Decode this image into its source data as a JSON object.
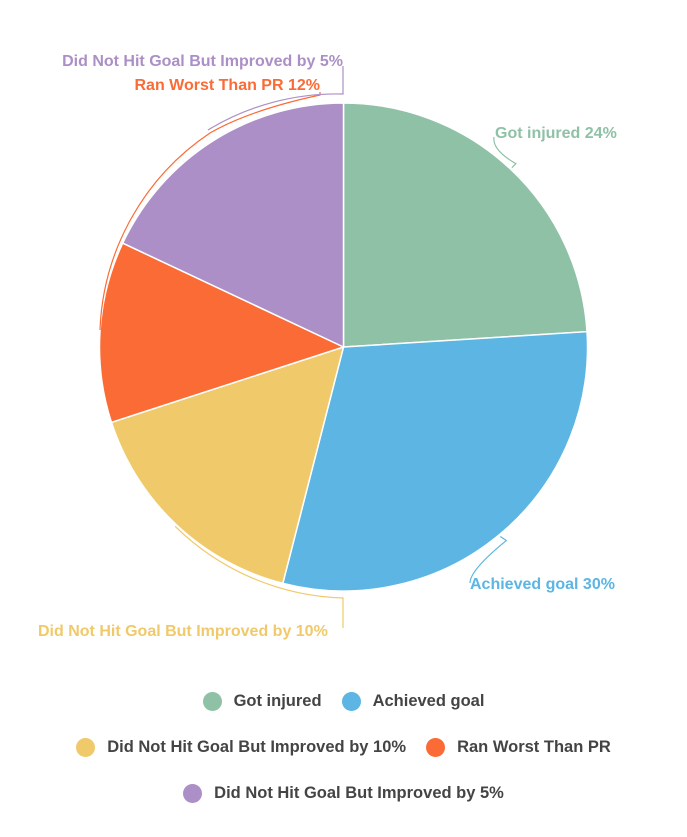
{
  "chart_data": {
    "type": "pie",
    "title": "",
    "slices": [
      {
        "name": "Got injured",
        "value": 24,
        "label": "Got injured 24%",
        "color": "#8fc1a6"
      },
      {
        "name": "Achieved goal",
        "value": 30,
        "label": "Achieved goal 30%",
        "color": "#5cb5e3"
      },
      {
        "name": "Did Not Hit Goal But Improved by 10%",
        "value": 16,
        "label": "Did Not Hit Goal But Improved by 10%",
        "color": "#f0c96a"
      },
      {
        "name": "Ran Worst Than PR",
        "value": 12,
        "label": "Ran Worst Than PR 12%",
        "color": "#fb6b35"
      },
      {
        "name": "Did Not Hit Goal But Improved by 5%",
        "value": 18,
        "label": "Did Not Hit Goal But Improved by 5%",
        "color": "#ab8fc6"
      }
    ],
    "legend_position": "bottom"
  },
  "legend": {
    "rows": [
      [
        0,
        1
      ],
      [
        2,
        3
      ],
      [
        4
      ]
    ]
  }
}
